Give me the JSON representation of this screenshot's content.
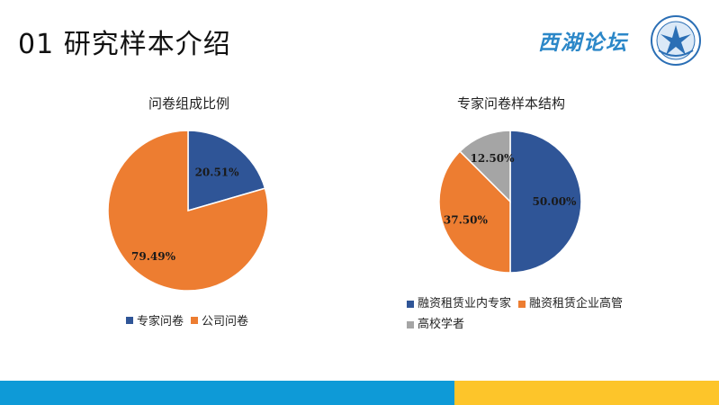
{
  "slide": {
    "title": "01 研究样本介绍",
    "logo_text": "西湖论坛"
  },
  "colors": {
    "blue": "#2f5597",
    "orange": "#ed7d31",
    "gray": "#a5a5a5",
    "band_blue": "#0e9ad7",
    "band_yellow": "#fdc52a"
  },
  "chart_data": [
    {
      "type": "pie",
      "title": "问卷组成比例",
      "labels": [
        "专家问卷",
        "公司问卷"
      ],
      "values": [
        20.51,
        79.49
      ],
      "value_labels": [
        "20.51%",
        "79.49%"
      ],
      "colors": [
        "#2f5597",
        "#ed7d31"
      ],
      "legend_position": "bottom"
    },
    {
      "type": "pie",
      "title": "专家问卷样本结构",
      "labels": [
        "融资租赁业内专家",
        "融资租赁企业高管",
        "高校学者"
      ],
      "values": [
        50.0,
        37.5,
        12.5
      ],
      "value_labels": [
        "50.00%",
        "37.50%",
        "12.50%"
      ],
      "colors": [
        "#2f5597",
        "#ed7d31",
        "#a5a5a5"
      ],
      "legend_position": "bottom"
    }
  ]
}
